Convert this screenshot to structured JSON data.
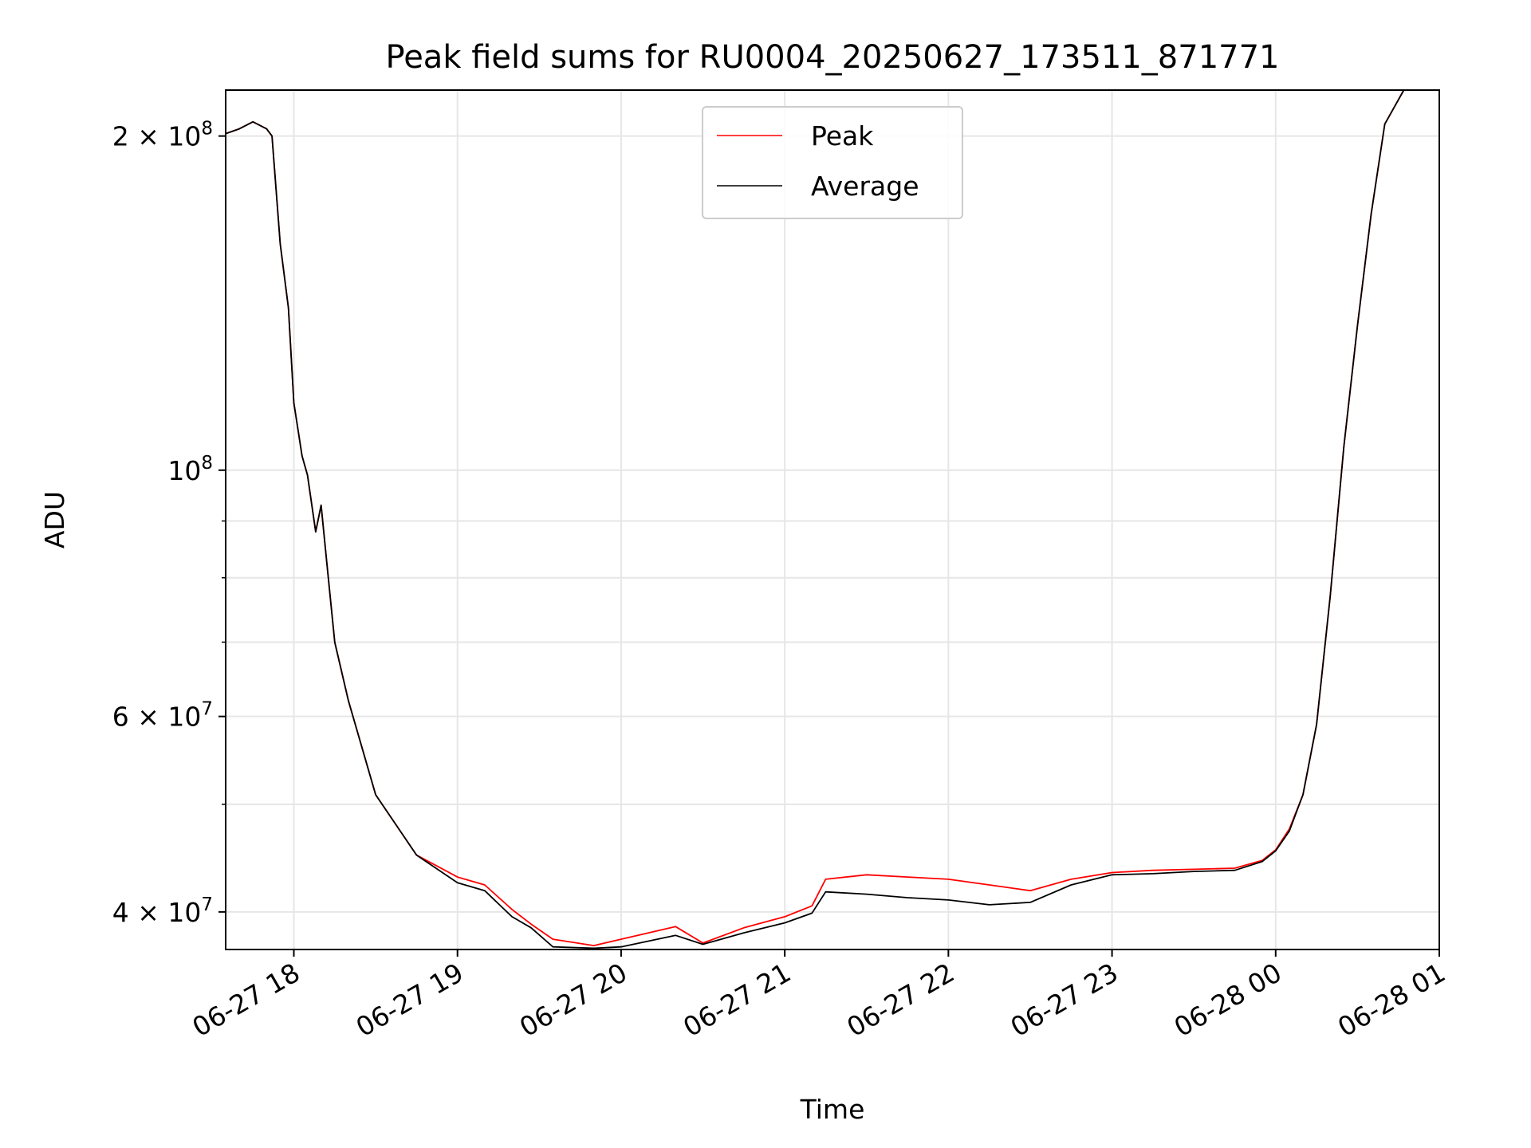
{
  "chart_data": {
    "type": "line",
    "title": "Peak field sums for RU0004_20250627_173511_871771",
    "xlabel": "Time",
    "ylabel": "ADU",
    "yscale": "log",
    "grid": true,
    "legend_position": "top-center",
    "xlim": [
      "2025-06-27 17:35",
      "2025-06-28 01:00"
    ],
    "ylim": [
      37000000,
      220000000
    ],
    "x_ticks": [
      "06-27 18",
      "06-27 19",
      "06-27 20",
      "06-27 21",
      "06-27 22",
      "06-27 23",
      "06-28 00",
      "06-28 01"
    ],
    "y_ticks": [
      {
        "value": 40000000,
        "label_mantissa": "4 × 10",
        "label_exp": "7"
      },
      {
        "value": 60000000,
        "label_mantissa": "6 × 10",
        "label_exp": "7"
      },
      {
        "value": 100000000,
        "label_mantissa": "10",
        "label_exp": "8"
      },
      {
        "value": 200000000,
        "label_mantissa": "2 × 10",
        "label_exp": "8"
      }
    ],
    "y_minor_ticks": [
      50000000,
      70000000,
      80000000,
      90000000
    ],
    "x": [
      "2025-06-27 17:35",
      "2025-06-27 17:40",
      "2025-06-27 17:45",
      "2025-06-27 17:50",
      "2025-06-27 17:52",
      "2025-06-27 17:55",
      "2025-06-27 17:58",
      "2025-06-27 18:00",
      "2025-06-27 18:03",
      "2025-06-27 18:05",
      "2025-06-27 18:08",
      "2025-06-27 18:10",
      "2025-06-27 18:12",
      "2025-06-27 18:15",
      "2025-06-27 18:20",
      "2025-06-27 18:30",
      "2025-06-27 18:45",
      "2025-06-27 19:00",
      "2025-06-27 19:10",
      "2025-06-27 19:20",
      "2025-06-27 19:27",
      "2025-06-27 19:35",
      "2025-06-27 19:50",
      "2025-06-27 20:00",
      "2025-06-27 20:20",
      "2025-06-27 20:30",
      "2025-06-27 20:45",
      "2025-06-27 21:00",
      "2025-06-27 21:10",
      "2025-06-27 21:15",
      "2025-06-27 21:30",
      "2025-06-27 21:45",
      "2025-06-27 22:00",
      "2025-06-27 22:15",
      "2025-06-27 22:30",
      "2025-06-27 22:45",
      "2025-06-27 23:00",
      "2025-06-27 23:15",
      "2025-06-27 23:30",
      "2025-06-27 23:45",
      "2025-06-27 23:55",
      "2025-06-28 00:00",
      "2025-06-28 00:05",
      "2025-06-28 00:10",
      "2025-06-28 00:15",
      "2025-06-28 00:20",
      "2025-06-28 00:25",
      "2025-06-28 00:30",
      "2025-06-28 00:35",
      "2025-06-28 00:40",
      "2025-06-28 00:47"
    ],
    "series": [
      {
        "name": "Peak",
        "color": "#ff0000",
        "values": [
          201000000,
          203000000,
          206000000,
          203000000,
          200000000,
          160000000,
          140000000,
          115000000,
          103000000,
          99000000,
          88000000,
          93000000,
          83000000,
          70000000,
          62000000,
          51000000,
          45000000,
          43000000,
          42300000,
          40200000,
          39000000,
          37800000,
          37300000,
          37800000,
          38800000,
          37500000,
          38700000,
          39600000,
          40500000,
          42800000,
          43200000,
          43000000,
          42800000,
          42300000,
          41800000,
          42800000,
          43400000,
          43600000,
          43700000,
          43800000,
          44500000,
          45500000,
          47500000,
          51000000,
          59000000,
          77000000,
          105000000,
          135000000,
          170000000,
          205000000,
          222000000
        ]
      },
      {
        "name": "Average",
        "color": "#000000",
        "values": [
          201000000,
          203000000,
          206000000,
          203000000,
          200000000,
          160000000,
          140000000,
          115000000,
          103000000,
          99000000,
          88000000,
          93000000,
          83000000,
          70000000,
          62000000,
          51000000,
          45000000,
          42500000,
          41800000,
          39600000,
          38700000,
          37200000,
          37100000,
          37200000,
          38100000,
          37400000,
          38300000,
          39100000,
          39900000,
          41700000,
          41500000,
          41200000,
          41000000,
          40600000,
          40800000,
          42300000,
          43200000,
          43300000,
          43500000,
          43600000,
          44400000,
          45400000,
          47300000,
          51000000,
          59000000,
          77000000,
          105000000,
          135000000,
          170000000,
          205000000,
          222000000
        ]
      }
    ]
  }
}
